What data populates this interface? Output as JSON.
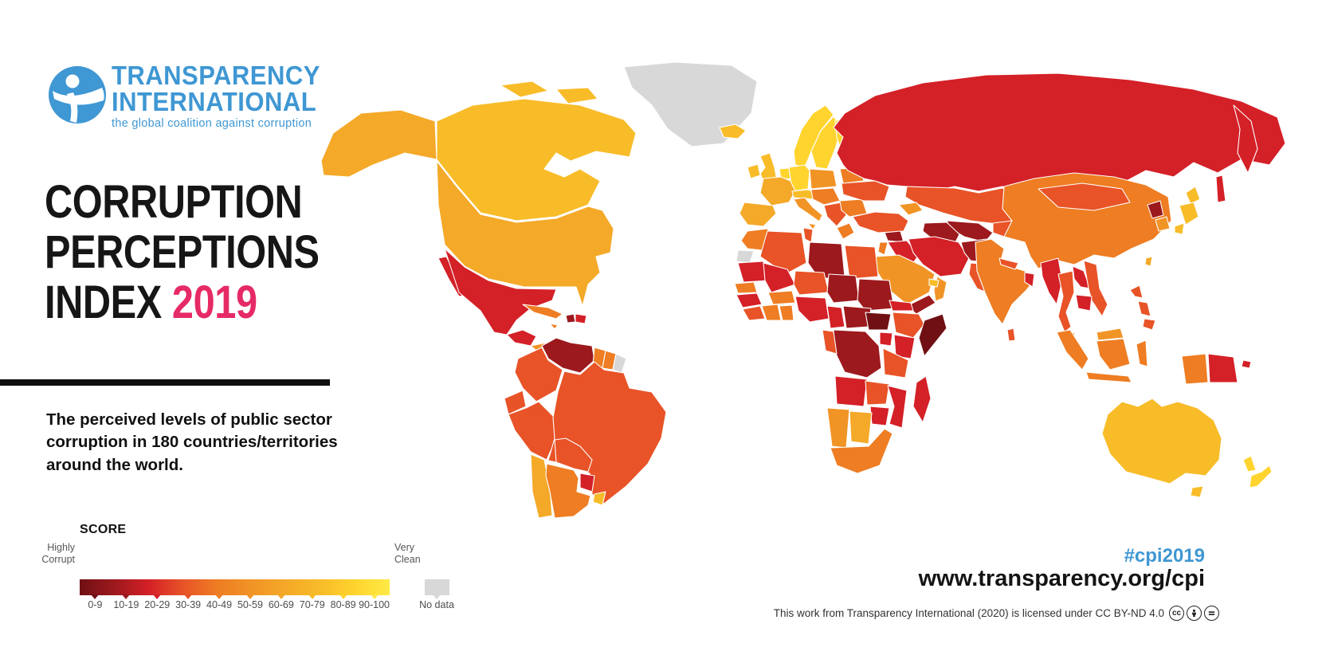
{
  "logo": {
    "name_line1": "TRANSPARENCY",
    "name_line2": "INTERNATIONAL",
    "tagline": "the global coalition against corruption",
    "brand_color": "#3f97d3"
  },
  "title": {
    "line1": "CORRUPTION",
    "line2": "PERCEPTIONS",
    "line3_prefix": "INDEX ",
    "line3_year": "2019",
    "year_color": "#e62a66"
  },
  "intro_text": "The perceived levels of public sector corruption in 180 countries/territories around the world.",
  "legend": {
    "heading": "SCORE",
    "left_label_line1": "Highly",
    "left_label_line2": "Corrupt",
    "right_label_line1": "Very",
    "right_label_line2": "Clean",
    "no_data_label": "No data",
    "no_data_color": "#d8d8d8",
    "ticks": [
      "0-9",
      "10-19",
      "20-29",
      "30-39",
      "40-49",
      "50-59",
      "60-69",
      "70-79",
      "80-89",
      "90-100"
    ],
    "gradient_stops": [
      "#701014",
      "#9c191d",
      "#d42027",
      "#e85327",
      "#ee7d23",
      "#f19426",
      "#f4a928",
      "#f8bc29",
      "#ffd42e",
      "#ffea46"
    ]
  },
  "footer": {
    "hashtag": "#cpi2019",
    "url": "www.transparency.org/cpi",
    "license_text": "This work from Transparency International (2020) is licensed under CC BY-ND 4.0",
    "license_icons": [
      "cc-icon",
      "attribution-icon",
      "no-derivatives-icon"
    ]
  },
  "map": {
    "palette": {
      "0-9": "#701014",
      "10-19": "#9c191d",
      "20-29": "#d42027",
      "30-39": "#e85327",
      "40-49": "#ee7d23",
      "50-59": "#f19426",
      "60-69": "#f4a928",
      "70-79": "#f8bc29",
      "80-89": "#ffd42e",
      "90-100": "#ffea46",
      "no-data": "#d8d8d8"
    },
    "regions": {
      "alaska-usa": "60-69",
      "canada": "70-79",
      "canada-arctic-islands-1": "70-79",
      "canada-arctic-islands-2": "70-79",
      "greenland": "no-data",
      "usa": "60-69",
      "baja-mexico": "20-29",
      "mexico": "20-29",
      "guatemala-region": "20-29",
      "costa-rica": "50-59",
      "panama": "30-39",
      "cuba": "40-49",
      "haiti": "10-19",
      "dominican-republic": "20-29",
      "jamaica": "40-49",
      "venezuela": "10-19",
      "colombia": "30-39",
      "guyana": "40-49",
      "suriname": "40-49",
      "french-guiana": "no-data",
      "ecuador": "30-39",
      "peru": "30-39",
      "brazil": "30-39",
      "bolivia": "30-39",
      "paraguay": "20-29",
      "uruguay": "70-79",
      "chile": "60-69",
      "argentina": "40-49",
      "iceland": "70-79",
      "ireland": "70-79",
      "uk": "70-79",
      "norway": "80-89",
      "sweden": "80-89",
      "finland": "80-89",
      "denmark": "80-89",
      "baltics": "60-69",
      "germany": "80-89",
      "poland": "50-59",
      "benelux": "80-89",
      "france": "60-69",
      "iberia": "60-69",
      "alpine": "70-79",
      "italy": "50-59",
      "sicily": "50-59",
      "central-europe": "40-49",
      "balkans": "30-39",
      "greece": "40-49",
      "romania-bulgaria": "40-49",
      "ukraine": "30-39",
      "belarus": "40-49",
      "russia": "20-29",
      "kamchatka-russia": "20-29",
      "sakhalin-russia": "20-29",
      "kazakhstan": "30-39",
      "uzbekistan": "10-19",
      "turkmenistan": "10-19",
      "kyrgyz-tajik": "30-39",
      "caucasus": "50-59",
      "turkey": "30-39",
      "syria": "10-19",
      "iraq": "20-29",
      "iran": "20-29",
      "afghanistan": "10-19",
      "pakistan": "30-39",
      "saudi-arabia": "50-59",
      "yemen": "10-19",
      "oman": "50-59",
      "uae": "70-79",
      "jordan-israel": "40-49",
      "morocco": "40-49",
      "western-sahara": "no-data",
      "algeria": "30-39",
      "tunisia": "30-39",
      "libya": "10-19",
      "egypt": "30-39",
      "mauritania": "20-29",
      "mali": "20-29",
      "niger": "30-39",
      "chad": "10-19",
      "sudan": "10-19",
      "senegal": "40-49",
      "guinea": "20-29",
      "sierra-leone-liberia": "30-39",
      "ivory-coast": "40-49",
      "ghana": "40-49",
      "burkina-faso": "40-49",
      "nigeria": "20-29",
      "cameroon": "20-29",
      "central-african-republic": "10-19",
      "south-sudan": "0-9",
      "ethiopia": "30-39",
      "eritrea": "20-29",
      "somalia": "0-9",
      "kenya": "20-29",
      "uganda": "20-29",
      "drc": "10-19",
      "congo-gabon": "30-39",
      "tanzania": "30-39",
      "angola": "20-29",
      "zambia": "30-39",
      "mozambique": "20-29",
      "zimbabwe": "20-29",
      "namibia": "50-59",
      "botswana": "60-69",
      "south-africa": "40-49",
      "madagascar": "20-29",
      "india": "40-49",
      "nepal": "30-39",
      "bangladesh": "20-29",
      "sri-lanka": "30-39",
      "china": "40-49",
      "mongolia": "30-39",
      "north-korea": "10-19",
      "south-korea": "50-59",
      "japan-hokkaido": "70-79",
      "japan-honshu": "70-79",
      "japan-kyushu": "70-79",
      "taiwan": "60-69",
      "myanmar": "20-29",
      "thailand": "30-39",
      "laos": "20-29",
      "vietnam": "30-39",
      "cambodia": "20-29",
      "malaysia-peninsula": "50-59",
      "malaysia-borneo": "50-59",
      "indonesia-sumatra": "40-49",
      "indonesia-java": "40-49",
      "indonesia-borneo": "40-49",
      "indonesia-sulawesi": "40-49",
      "indonesia-papua": "40-49",
      "papua-new-guinea": "20-29",
      "png-islands": "20-29",
      "philippines-north": "30-39",
      "philippines-central": "30-39",
      "philippines-south": "30-39",
      "australia": "70-79",
      "tasmania": "70-79",
      "new-zealand-north": "80-89",
      "new-zealand-south": "80-89"
    }
  }
}
